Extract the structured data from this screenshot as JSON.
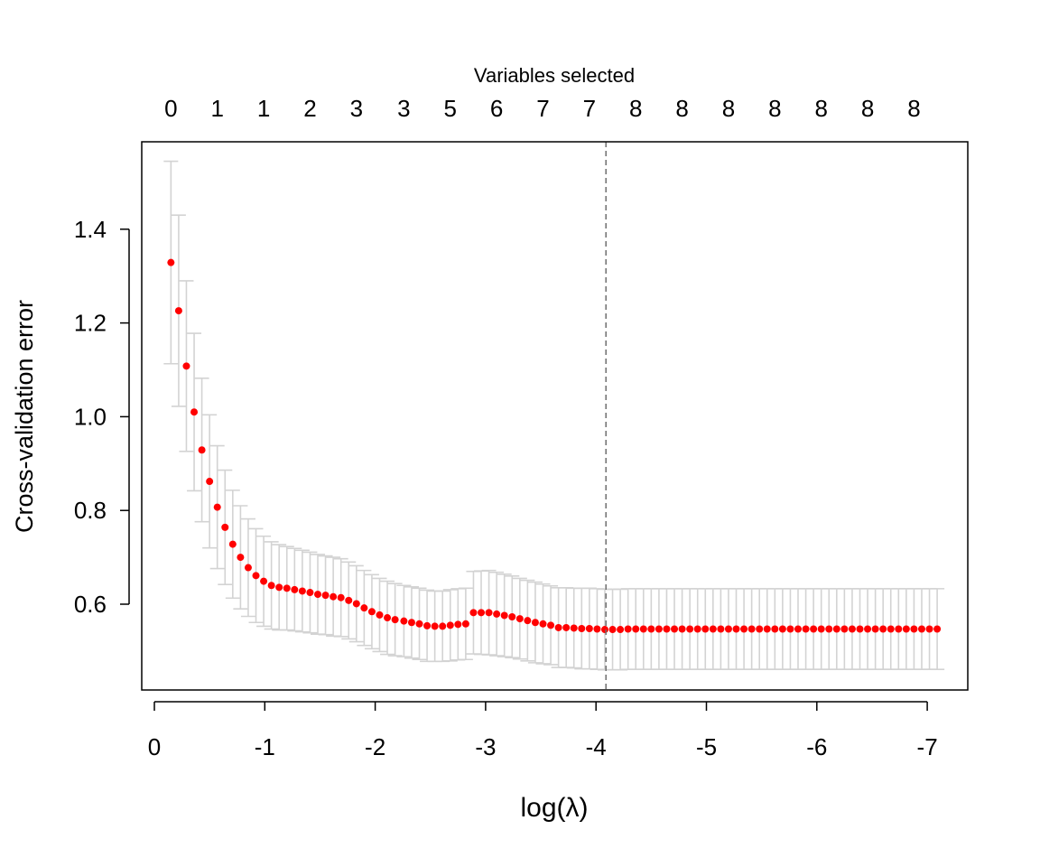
{
  "chart_data": {
    "type": "scatter",
    "title": "",
    "xlabel": "log(λ)",
    "ylabel": "Cross-validation error",
    "top_axis_label": "Variables selected",
    "x_direction": "decreasing",
    "xlim": [
      0.12,
      -7.28
    ],
    "ylim": [
      0.425,
      1.56
    ],
    "x_ticks": [
      0,
      -1,
      -2,
      -3,
      -4,
      -5,
      -6,
      -7
    ],
    "x_tick_labels": [
      "0",
      "-1",
      "-2",
      "-3",
      "-4",
      "-5",
      "-6",
      "-7"
    ],
    "y_ticks": [
      0.6,
      0.8,
      1.0,
      1.2,
      1.4
    ],
    "y_tick_labels": [
      "0.6",
      "0.8",
      "1.0",
      "1.2",
      "1.4"
    ],
    "top_ticks_x": [
      -0.15,
      -0.57,
      -0.99,
      -1.41,
      -1.83,
      -2.26,
      -2.68,
      -3.1,
      -3.52,
      -3.94,
      -4.36,
      -4.78,
      -5.2,
      -5.62,
      -6.04,
      -6.46,
      -6.88
    ],
    "top_tick_labels": [
      "0",
      "1",
      "1",
      "2",
      "3",
      "3",
      "5",
      "6",
      "7",
      "7",
      "8",
      "8",
      "8",
      "8",
      "8",
      "8",
      "8"
    ],
    "selected_log_lambda": -4.09,
    "grid": false,
    "point_color": "#ff0000",
    "errorbar_color": "#d3d3d3",
    "vline_color": "#6e6e6e",
    "series": [
      {
        "x": [
          -0.15,
          -0.22,
          -0.29,
          -0.36,
          -0.43,
          -0.5,
          -0.57,
          -0.64,
          -0.71,
          -0.78,
          -0.85,
          -0.92,
          -0.99,
          -1.06,
          -1.13,
          -1.2,
          -1.27,
          -1.34,
          -1.41,
          -1.48,
          -1.55,
          -1.62,
          -1.69,
          -1.76,
          -1.83,
          -1.9,
          -1.97,
          -2.04,
          -2.11,
          -2.18,
          -2.26,
          -2.33,
          -2.4,
          -2.47,
          -2.54,
          -2.61,
          -2.68,
          -2.75,
          -2.82,
          -2.89,
          -2.96,
          -3.03,
          -3.1,
          -3.17,
          -3.24,
          -3.31,
          -3.38,
          -3.45,
          -3.52,
          -3.59,
          -3.66,
          -3.73,
          -3.8,
          -3.87,
          -3.94,
          -4.01,
          -4.08,
          -4.15,
          -4.22,
          -4.29,
          -4.36,
          -4.43,
          -4.5,
          -4.57,
          -4.64,
          -4.71,
          -4.78,
          -4.85,
          -4.92,
          -4.99,
          -5.06,
          -5.13,
          -5.2,
          -5.27,
          -5.34,
          -5.41,
          -5.48,
          -5.55,
          -5.62,
          -5.69,
          -5.76,
          -5.83,
          -5.9,
          -5.97,
          -6.04,
          -6.11,
          -6.18,
          -6.25,
          -6.32,
          -6.39,
          -6.46,
          -6.53,
          -6.6,
          -6.67,
          -6.74,
          -6.81,
          -6.88,
          -6.95,
          -7.02,
          -7.09
        ],
        "y": [
          1.329,
          1.226,
          1.108,
          1.01,
          0.929,
          0.862,
          0.807,
          0.764,
          0.728,
          0.7,
          0.678,
          0.661,
          0.649,
          0.64,
          0.636,
          0.634,
          0.631,
          0.628,
          0.625,
          0.621,
          0.619,
          0.616,
          0.614,
          0.608,
          0.601,
          0.592,
          0.584,
          0.577,
          0.571,
          0.567,
          0.564,
          0.561,
          0.558,
          0.554,
          0.553,
          0.553,
          0.555,
          0.557,
          0.558,
          0.582,
          0.582,
          0.582,
          0.579,
          0.576,
          0.573,
          0.569,
          0.565,
          0.561,
          0.558,
          0.555,
          0.55,
          0.55,
          0.549,
          0.548,
          0.548,
          0.547,
          0.546,
          0.546,
          0.546,
          0.547,
          0.547,
          0.547,
          0.547,
          0.547,
          0.547,
          0.547,
          0.547,
          0.547,
          0.547,
          0.547,
          0.547,
          0.547,
          0.547,
          0.547,
          0.547,
          0.547,
          0.547,
          0.547,
          0.547,
          0.547,
          0.547,
          0.547,
          0.547,
          0.547,
          0.547,
          0.547,
          0.547,
          0.547,
          0.547,
          0.547,
          0.547,
          0.547,
          0.547,
          0.547,
          0.547,
          0.547,
          0.547,
          0.547,
          0.547,
          0.547
        ],
        "upper": [
          1.545,
          1.43,
          1.29,
          1.178,
          1.082,
          1.004,
          0.938,
          0.886,
          0.843,
          0.81,
          0.782,
          0.761,
          0.745,
          0.733,
          0.727,
          0.723,
          0.719,
          0.715,
          0.711,
          0.706,
          0.703,
          0.7,
          0.697,
          0.69,
          0.682,
          0.672,
          0.663,
          0.655,
          0.649,
          0.644,
          0.64,
          0.637,
          0.634,
          0.63,
          0.628,
          0.628,
          0.631,
          0.633,
          0.634,
          0.67,
          0.671,
          0.672,
          0.668,
          0.664,
          0.66,
          0.655,
          0.651,
          0.647,
          0.643,
          0.639,
          0.635,
          0.635,
          0.634,
          0.634,
          0.634,
          0.633,
          0.632,
          0.632,
          0.632,
          0.633,
          0.633,
          0.633,
          0.633,
          0.633,
          0.633,
          0.633,
          0.633,
          0.633,
          0.633,
          0.633,
          0.633,
          0.633,
          0.633,
          0.633,
          0.633,
          0.633,
          0.633,
          0.633,
          0.633,
          0.633,
          0.633,
          0.633,
          0.633,
          0.633,
          0.633,
          0.633,
          0.633,
          0.633,
          0.633,
          0.633,
          0.633,
          0.633,
          0.633,
          0.633,
          0.633,
          0.633,
          0.633,
          0.633,
          0.633,
          0.633
        ],
        "lower": [
          1.113,
          1.022,
          0.926,
          0.842,
          0.776,
          0.72,
          0.676,
          0.642,
          0.613,
          0.59,
          0.574,
          0.561,
          0.553,
          0.547,
          0.545,
          0.545,
          0.543,
          0.541,
          0.539,
          0.536,
          0.535,
          0.532,
          0.531,
          0.526,
          0.52,
          0.512,
          0.505,
          0.499,
          0.493,
          0.49,
          0.488,
          0.485,
          0.482,
          0.478,
          0.478,
          0.478,
          0.479,
          0.481,
          0.482,
          0.494,
          0.493,
          0.492,
          0.49,
          0.488,
          0.486,
          0.483,
          0.479,
          0.475,
          0.473,
          0.471,
          0.465,
          0.465,
          0.464,
          0.462,
          0.462,
          0.461,
          0.46,
          0.46,
          0.46,
          0.461,
          0.461,
          0.461,
          0.461,
          0.461,
          0.461,
          0.461,
          0.461,
          0.461,
          0.461,
          0.461,
          0.461,
          0.461,
          0.461,
          0.461,
          0.461,
          0.461,
          0.461,
          0.461,
          0.461,
          0.461,
          0.461,
          0.461,
          0.461,
          0.461,
          0.461,
          0.461,
          0.461,
          0.461,
          0.461,
          0.461,
          0.461,
          0.461,
          0.461,
          0.461,
          0.461,
          0.461,
          0.461,
          0.461,
          0.461,
          0.461
        ]
      }
    ]
  }
}
